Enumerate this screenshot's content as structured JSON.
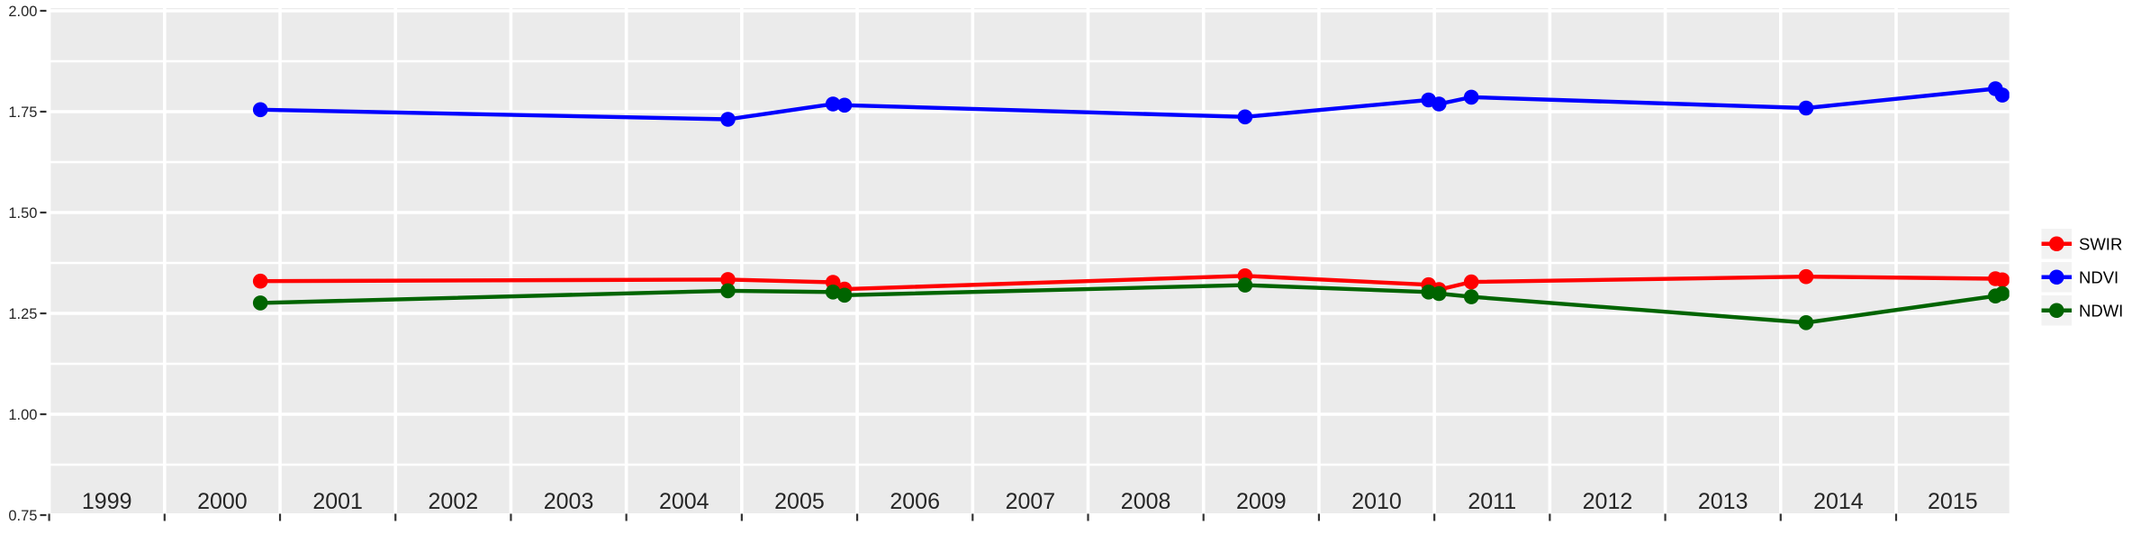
{
  "chart_data": {
    "type": "line",
    "title": "",
    "xlabel": "",
    "ylabel": "",
    "grid": true,
    "x": [
      2000.83,
      2004.88,
      2005.79,
      2005.89,
      2009.36,
      2010.95,
      2011.04,
      2011.32,
      2014.22,
      2015.86,
      2015.92
    ],
    "series": [
      {
        "name": "SWIR",
        "color": "#FF0000",
        "values": [
          1.33,
          1.334,
          1.327,
          1.31,
          1.343,
          1.321,
          1.309,
          1.328,
          1.341,
          1.336,
          1.333
        ]
      },
      {
        "name": "NDVI",
        "color": "#0000FF",
        "values": [
          1.755,
          1.731,
          1.769,
          1.766,
          1.737,
          1.779,
          1.769,
          1.786,
          1.759,
          1.807,
          1.791
        ]
      },
      {
        "name": "NDWI",
        "color": "#006400",
        "values": [
          1.276,
          1.306,
          1.303,
          1.295,
          1.32,
          1.303,
          1.299,
          1.291,
          1.227,
          1.293,
          1.299
        ]
      }
    ],
    "x_axis": {
      "range": [
        1999.0,
        2015.95
      ],
      "tick_years": [
        1999,
        2000,
        2001,
        2002,
        2003,
        2004,
        2005,
        2006,
        2007,
        2008,
        2009,
        2010,
        2011,
        2012,
        2013,
        2014,
        2015
      ],
      "band_labels": [
        "1999",
        "2000",
        "2001",
        "2002",
        "2003",
        "2004",
        "2005",
        "2006",
        "2007",
        "2008",
        "2009",
        "2010",
        "2011",
        "2012",
        "2013",
        "2014",
        "2015"
      ]
    },
    "y_axis": {
      "range": [
        0.75,
        2.0
      ],
      "ticks": [
        0.75,
        1.0,
        1.25,
        1.5,
        1.75,
        2.0
      ],
      "tick_labels": [
        "0.75",
        "1.00",
        "1.25",
        "1.50",
        "1.75",
        "2.00"
      ],
      "minor_ticks": [
        0.875,
        1.125,
        1.375,
        1.625,
        1.875
      ]
    },
    "legend": {
      "position": "right",
      "entries": [
        {
          "label": "SWIR",
          "color": "#FF0000"
        },
        {
          "label": "NDVI",
          "color": "#0000FF"
        },
        {
          "label": "NDWI",
          "color": "#006400"
        }
      ]
    },
    "style": {
      "panel_bg": "#EBEBEB",
      "grid_color": "#FFFFFF",
      "legend_key_bg": "#F2F2F2",
      "axis_text_color": "#262626",
      "tick_mark_color": "#333333",
      "legend_text_color": "#000000"
    }
  }
}
